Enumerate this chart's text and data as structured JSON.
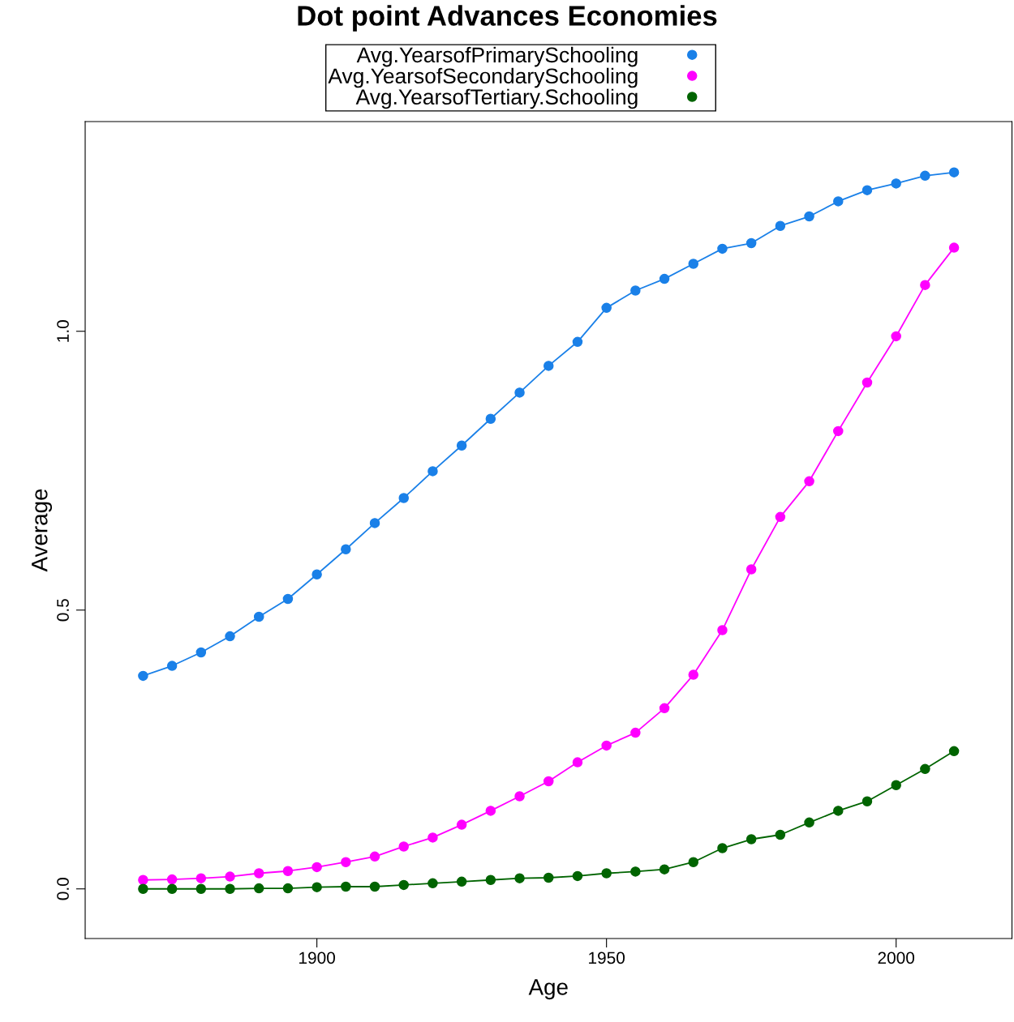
{
  "chart_data": {
    "type": "line",
    "title": "Dot point Advances Economies",
    "xlabel": "Age",
    "ylabel": "Average",
    "x": [
      1870,
      1875,
      1880,
      1885,
      1890,
      1895,
      1900,
      1905,
      1910,
      1915,
      1920,
      1925,
      1930,
      1935,
      1940,
      1945,
      1950,
      1955,
      1960,
      1965,
      1970,
      1975,
      1980,
      1985,
      1990,
      1995,
      2000,
      2005,
      2010
    ],
    "series": [
      {
        "name": "Avg.YearsofPrimarySchooling",
        "color": "#1a80e8",
        "values": [
          0.382,
          0.4,
          0.424,
          0.453,
          0.488,
          0.52,
          0.564,
          0.609,
          0.656,
          0.701,
          0.749,
          0.795,
          0.843,
          0.89,
          0.938,
          0.981,
          1.042,
          1.073,
          1.094,
          1.121,
          1.148,
          1.158,
          1.189,
          1.206,
          1.233,
          1.253,
          1.265,
          1.279,
          1.285
        ]
      },
      {
        "name": "Avg.YearsofSecondarySchooling",
        "color": "#ff00ff",
        "values": [
          0.016,
          0.017,
          0.019,
          0.022,
          0.028,
          0.032,
          0.039,
          0.048,
          0.058,
          0.076,
          0.092,
          0.115,
          0.14,
          0.166,
          0.193,
          0.227,
          0.257,
          0.28,
          0.324,
          0.384,
          0.464,
          0.573,
          0.667,
          0.731,
          0.821,
          0.908,
          0.991,
          1.083,
          1.15
        ]
      },
      {
        "name": "Avg.YearsofTertiary.Schooling",
        "color": "#006400",
        "values": [
          0.0,
          0.0,
          0.0,
          0.0,
          0.001,
          0.001,
          0.003,
          0.004,
          0.004,
          0.007,
          0.01,
          0.013,
          0.016,
          0.019,
          0.02,
          0.023,
          0.028,
          0.031,
          0.035,
          0.048,
          0.073,
          0.089,
          0.097,
          0.119,
          0.14,
          0.157,
          0.186,
          0.215,
          0.247
        ]
      }
    ],
    "xlim": [
      1860,
      2020
    ],
    "xticks": [
      1900,
      1950,
      2000
    ],
    "ylim": [
      -0.089,
      1.376
    ],
    "yticks": [
      {
        "value": 0,
        "label": "0.0"
      },
      {
        "value": 0.5,
        "label": "0.5"
      },
      {
        "value": 1.0,
        "label": "1.0"
      }
    ],
    "marker": "circle",
    "line_style": "solid",
    "grid": false,
    "legend": "top"
  }
}
